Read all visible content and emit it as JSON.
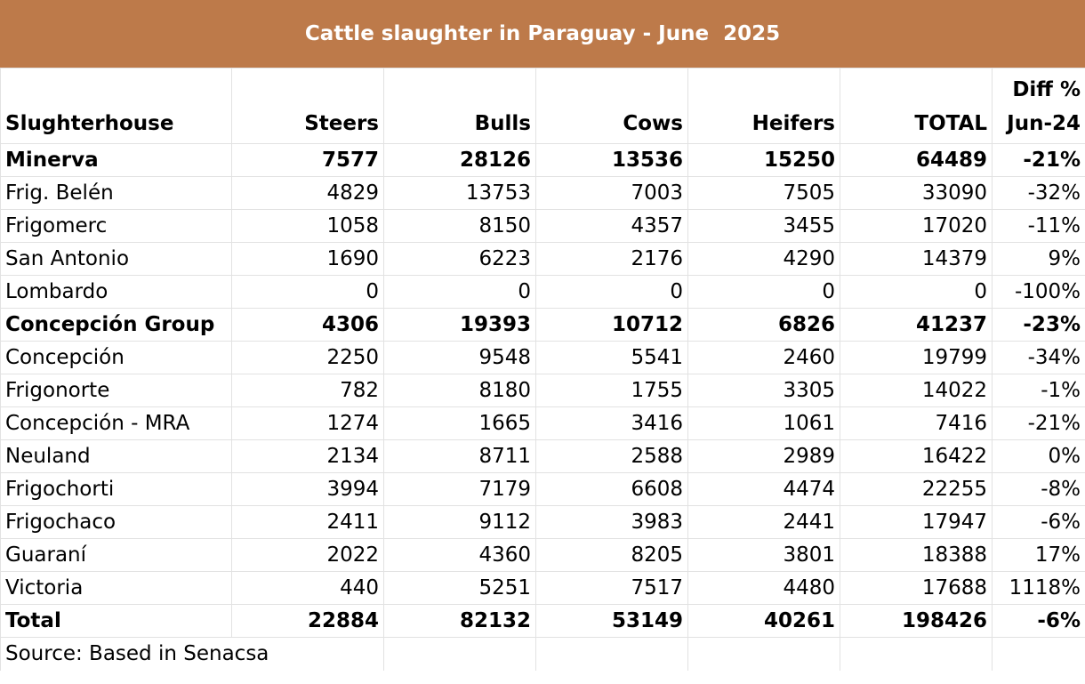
{
  "title": "Cattle slaughter in Paraguay - June  2025",
  "colors": {
    "title_bg": "#bd7a4a",
    "title_text": "#ffffff",
    "grid": "#e2e2e2"
  },
  "columns": {
    "slaughterhouse": "Slughterhouse",
    "steers": "Steers",
    "bulls": "Bulls",
    "cows": "Cows",
    "heifers": "Heifers",
    "total": "TOTAL",
    "diff_line1": "Diff %",
    "diff_line2": "Jun-24"
  },
  "rows": [
    {
      "name": "Minerva",
      "steers": "7577",
      "bulls": "28126",
      "cows": "13536",
      "heifers": "15250",
      "total": "64489",
      "diff": "-21%"
    },
    {
      "name": "Frig. Belén",
      "steers": "4829",
      "bulls": "13753",
      "cows": "7003",
      "heifers": "7505",
      "total": "33090",
      "diff": "-32%"
    },
    {
      "name": "Frigomerc",
      "steers": "1058",
      "bulls": "8150",
      "cows": "4357",
      "heifers": "3455",
      "total": "17020",
      "diff": "-11%"
    },
    {
      "name": "San Antonio",
      "steers": "1690",
      "bulls": "6223",
      "cows": "2176",
      "heifers": "4290",
      "total": "14379",
      "diff": "9%"
    },
    {
      "name": "Lombardo",
      "steers": "0",
      "bulls": "0",
      "cows": "0",
      "heifers": "0",
      "total": "0",
      "diff": "-100%"
    },
    {
      "name": "Concepción Group",
      "steers": "4306",
      "bulls": "19393",
      "cows": "10712",
      "heifers": "6826",
      "total": "41237",
      "diff": "-23%"
    },
    {
      "name": "Concepción",
      "steers": "2250",
      "bulls": "9548",
      "cows": "5541",
      "heifers": "2460",
      "total": "19799",
      "diff": "-34%"
    },
    {
      "name": "Frigonorte",
      "steers": "782",
      "bulls": "8180",
      "cows": "1755",
      "heifers": "3305",
      "total": "14022",
      "diff": "-1%"
    },
    {
      "name": "Concepción - MRA",
      "steers": "1274",
      "bulls": "1665",
      "cows": "3416",
      "heifers": "1061",
      "total": "7416",
      "diff": "-21%"
    },
    {
      "name": "Neuland",
      "steers": "2134",
      "bulls": "8711",
      "cows": "2588",
      "heifers": "2989",
      "total": "16422",
      "diff": "0%"
    },
    {
      "name": "Frigochorti",
      "steers": "3994",
      "bulls": "7179",
      "cows": "6608",
      "heifers": "4474",
      "total": "22255",
      "diff": "-8%"
    },
    {
      "name": "Frigochaco",
      "steers": "2411",
      "bulls": "9112",
      "cows": "3983",
      "heifers": "2441",
      "total": "17947",
      "diff": "-6%"
    },
    {
      "name": "Guaraní",
      "steers": "2022",
      "bulls": "4360",
      "cows": "8205",
      "heifers": "3801",
      "total": "18388",
      "diff": "17%"
    },
    {
      "name": "Victoria",
      "steers": "440",
      "bulls": "5251",
      "cows": "7517",
      "heifers": "4480",
      "total": "17688",
      "diff": "1118%"
    },
    {
      "name": "Total",
      "steers": "22884",
      "bulls": "82132",
      "cows": "53149",
      "heifers": "40261",
      "total": "198426",
      "diff": "-6%"
    }
  ],
  "source": "Source: Based in Senacsa"
}
